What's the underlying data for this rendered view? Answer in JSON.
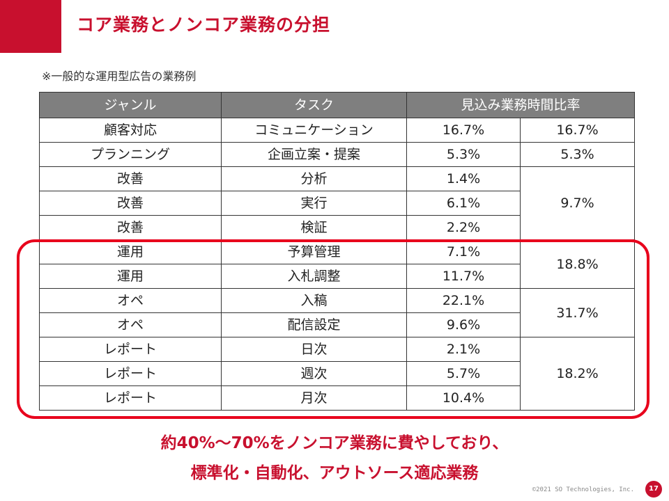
{
  "title": "コア業務とノンコア業務の分担",
  "note": "※一般的な運用型広告の業務例",
  "table": {
    "headers": [
      "ジャンル",
      "タスク",
      "見込み業務時間比率"
    ],
    "rows": [
      {
        "genre": "顧客対応",
        "task": "コミュニケーション",
        "ratio": "16.7%"
      },
      {
        "genre": "プランニング",
        "task": "企画立案・提案",
        "ratio": "5.3%"
      },
      {
        "genre": "改善",
        "task": "分析",
        "ratio": "1.4%"
      },
      {
        "genre": "改善",
        "task": "実行",
        "ratio": "6.1%"
      },
      {
        "genre": "改善",
        "task": "検証",
        "ratio": "2.2%"
      },
      {
        "genre": "運用",
        "task": "予算管理",
        "ratio": "7.1%"
      },
      {
        "genre": "運用",
        "task": "入札調整",
        "ratio": "11.7%"
      },
      {
        "genre": "オペ",
        "task": "入稿",
        "ratio": "22.1%"
      },
      {
        "genre": "オペ",
        "task": "配信設定",
        "ratio": "9.6%"
      },
      {
        "genre": "レポート",
        "task": "日次",
        "ratio": "2.1%"
      },
      {
        "genre": "レポート",
        "task": "週次",
        "ratio": "5.7%"
      },
      {
        "genre": "レポート",
        "task": "月次",
        "ratio": "10.4%"
      }
    ],
    "group_totals": [
      "16.7%",
      "5.3%",
      "9.7%",
      "18.8%",
      "31.7%",
      "18.2%"
    ]
  },
  "conclusion": {
    "line1": "約40%〜70%をノンコア業務に費やしており、",
    "line2": "標準化・自動化、アウトソース適応業務"
  },
  "footer": {
    "copyright": "©2021 SO Technologies, Inc.",
    "page_number": "17"
  },
  "colors": {
    "accent": "#c8102e",
    "highlight_border": "#e8001c",
    "header_bg": "#7f7f7f"
  }
}
